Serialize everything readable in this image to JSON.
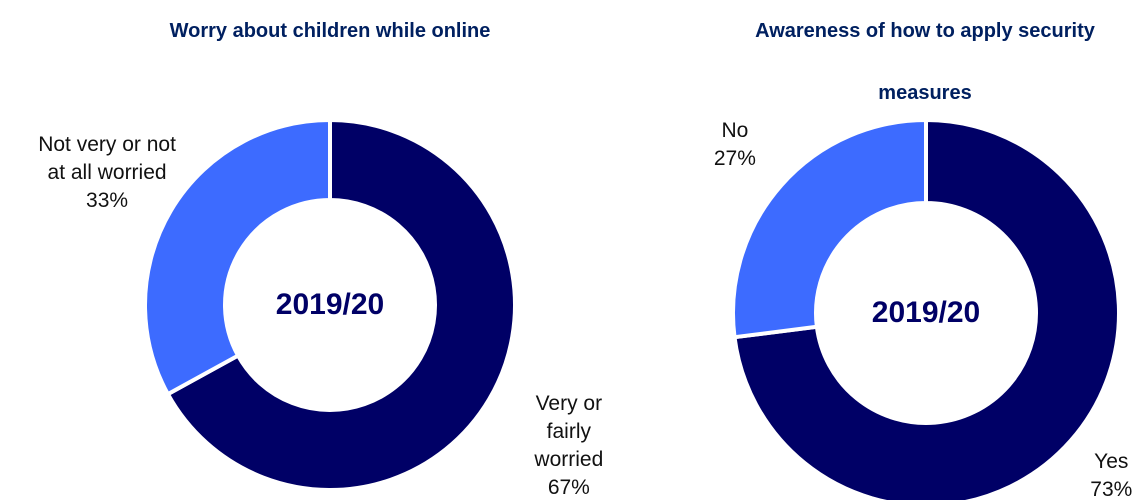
{
  "chart_data": [
    {
      "type": "donut",
      "title": "Worry about children while online",
      "center_label": "2019/20",
      "categories": [
        "Very or fairly worried",
        "Not very or not at all worried"
      ],
      "values": [
        67,
        33
      ],
      "value_labels": [
        "67%",
        "33%"
      ],
      "colors": [
        "#000066",
        "#3d6bff"
      ]
    },
    {
      "type": "donut",
      "title": "Awareness of how to apply security measures",
      "center_label": "2019/20",
      "categories": [
        "Yes",
        "No"
      ],
      "values": [
        73,
        27
      ],
      "value_labels": [
        "73%",
        "27%"
      ],
      "colors": [
        "#000066",
        "#3d6bff"
      ]
    }
  ]
}
